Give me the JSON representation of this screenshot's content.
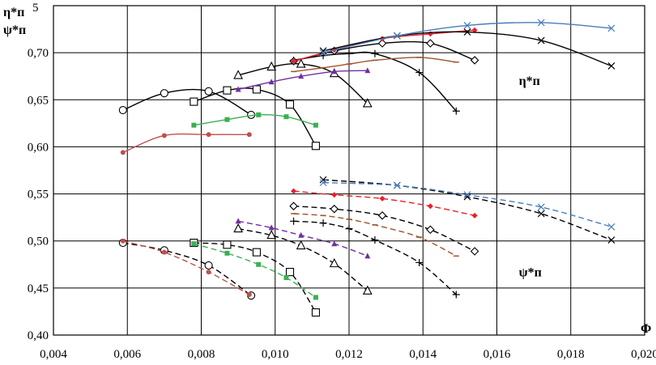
{
  "chart_data": {
    "type": "line",
    "xlabel": "Φ",
    "ylabel_lines": [
      "η*п",
      "ψ*п"
    ],
    "xlim": [
      0.004,
      0.02
    ],
    "ylim": [
      0.4,
      0.75
    ],
    "x_ticks": [
      "0,004",
      "0,006",
      "0,008",
      "0,010",
      "0,012",
      "0,014",
      "0,016",
      "0,018",
      "0,020"
    ],
    "y_ticks": [
      "0,40",
      "0,45",
      "0,50",
      "0,55",
      "0,60",
      "0,65",
      "0,70"
    ],
    "y_top_label": "5",
    "grid": true,
    "annotations": [
      {
        "text": "η*п",
        "x": 0.0169,
        "y": 0.669
      },
      {
        "text": "ψ*п",
        "x": 0.0169,
        "y": 0.466
      }
    ],
    "series": [
      {
        "group": "eta",
        "color": "#000000",
        "marker": "circle",
        "dash": false,
        "points": [
          [
            0.00588,
            0.639
          ],
          [
            0.007,
            0.657
          ],
          [
            0.0082,
            0.659
          ],
          [
            0.00935,
            0.634
          ]
        ]
      },
      {
        "group": "eta",
        "color": "#c0504d",
        "marker": "dot",
        "dash": false,
        "points": [
          [
            0.00588,
            0.594
          ],
          [
            0.007,
            0.612
          ],
          [
            0.0082,
            0.613
          ],
          [
            0.0093,
            0.613
          ]
        ]
      },
      {
        "group": "eta",
        "color": "#000000",
        "marker": "square",
        "dash": false,
        "points": [
          [
            0.0078,
            0.648
          ],
          [
            0.0087,
            0.66
          ],
          [
            0.0095,
            0.661
          ],
          [
            0.0104,
            0.645
          ],
          [
            0.0111,
            0.601
          ]
        ]
      },
      {
        "group": "eta",
        "color": "#3cb054",
        "marker": "filled-square",
        "dash": false,
        "points": [
          [
            0.0078,
            0.623
          ],
          [
            0.0087,
            0.629
          ],
          [
            0.00955,
            0.634
          ],
          [
            0.0103,
            0.632
          ],
          [
            0.0111,
            0.623
          ]
        ]
      },
      {
        "group": "eta",
        "color": "#000000",
        "marker": "triangle",
        "dash": false,
        "points": [
          [
            0.009,
            0.676
          ],
          [
            0.0099,
            0.685
          ],
          [
            0.0107,
            0.688
          ],
          [
            0.0116,
            0.678
          ],
          [
            0.0125,
            0.646
          ]
        ]
      },
      {
        "group": "eta",
        "color": "#7030a0",
        "marker": "filled-triangle",
        "dash": false,
        "points": [
          [
            0.009,
            0.661
          ],
          [
            0.0099,
            0.669
          ],
          [
            0.0107,
            0.675
          ],
          [
            0.0116,
            0.68
          ],
          [
            0.0125,
            0.681
          ]
        ]
      },
      {
        "group": "eta",
        "color": "#000000",
        "marker": "plus",
        "dash": false,
        "points": [
          [
            0.0105,
            0.692
          ],
          [
            0.0113,
            0.697
          ],
          [
            0.012,
            0.699
          ],
          [
            0.0127,
            0.699
          ],
          [
            0.0139,
            0.679
          ],
          [
            0.0149,
            0.638
          ]
        ]
      },
      {
        "group": "eta",
        "color": "#a0522d",
        "marker": "dash",
        "dash": false,
        "points": [
          [
            0.0105,
            0.68
          ],
          [
            0.0113,
            0.684
          ],
          [
            0.012,
            0.688
          ],
          [
            0.0127,
            0.692
          ],
          [
            0.0139,
            0.695
          ],
          [
            0.0149,
            0.69
          ]
        ]
      },
      {
        "group": "eta",
        "color": "#000000",
        "marker": "diamond",
        "dash": false,
        "points": [
          [
            0.0105,
            0.691
          ],
          [
            0.0116,
            0.702
          ],
          [
            0.0129,
            0.71
          ],
          [
            0.0142,
            0.71
          ],
          [
            0.0154,
            0.692
          ]
        ]
      },
      {
        "group": "eta",
        "color": "#e8202a",
        "marker": "filled-diamond",
        "dash": false,
        "points": [
          [
            0.0105,
            0.691
          ],
          [
            0.0116,
            0.703
          ],
          [
            0.0129,
            0.715
          ],
          [
            0.0142,
            0.72
          ],
          [
            0.0154,
            0.724
          ]
        ]
      },
      {
        "group": "eta",
        "color": "#000000",
        "marker": "x",
        "dash": false,
        "points": [
          [
            0.0113,
            0.702
          ],
          [
            0.0133,
            0.718
          ],
          [
            0.0152,
            0.722
          ],
          [
            0.0172,
            0.713
          ],
          [
            0.0191,
            0.686
          ]
        ]
      },
      {
        "group": "eta",
        "color": "#4a7ebb",
        "marker": "x",
        "dash": false,
        "points": [
          [
            0.0113,
            0.7
          ],
          [
            0.0133,
            0.718
          ],
          [
            0.0152,
            0.729
          ],
          [
            0.0172,
            0.732
          ],
          [
            0.0191,
            0.726
          ]
        ]
      },
      {
        "group": "psi",
        "color": "#000000",
        "marker": "circle",
        "dash": true,
        "points": [
          [
            0.00588,
            0.498
          ],
          [
            0.007,
            0.49
          ],
          [
            0.0082,
            0.474
          ],
          [
            0.00935,
            0.442
          ]
        ]
      },
      {
        "group": "psi",
        "color": "#c0504d",
        "marker": "dot",
        "dash": true,
        "points": [
          [
            0.00588,
            0.5
          ],
          [
            0.007,
            0.488
          ],
          [
            0.0082,
            0.467
          ],
          [
            0.0093,
            0.443
          ]
        ]
      },
      {
        "group": "psi",
        "color": "#000000",
        "marker": "square",
        "dash": true,
        "points": [
          [
            0.0078,
            0.498
          ],
          [
            0.0087,
            0.496
          ],
          [
            0.0095,
            0.488
          ],
          [
            0.0104,
            0.467
          ],
          [
            0.0111,
            0.424
          ]
        ]
      },
      {
        "group": "psi",
        "color": "#3cb054",
        "marker": "filled-square",
        "dash": true,
        "points": [
          [
            0.0078,
            0.497
          ],
          [
            0.0087,
            0.487
          ],
          [
            0.00955,
            0.475
          ],
          [
            0.0103,
            0.461
          ],
          [
            0.0111,
            0.44
          ]
        ]
      },
      {
        "group": "psi",
        "color": "#000000",
        "marker": "triangle",
        "dash": true,
        "points": [
          [
            0.009,
            0.513
          ],
          [
            0.0099,
            0.506
          ],
          [
            0.0107,
            0.495
          ],
          [
            0.0116,
            0.476
          ],
          [
            0.0125,
            0.447
          ]
        ]
      },
      {
        "group": "psi",
        "color": "#7030a0",
        "marker": "filled-triangle",
        "dash": true,
        "points": [
          [
            0.009,
            0.521
          ],
          [
            0.0099,
            0.514
          ],
          [
            0.0107,
            0.506
          ],
          [
            0.0116,
            0.497
          ],
          [
            0.0125,
            0.484
          ]
        ]
      },
      {
        "group": "psi",
        "color": "#000000",
        "marker": "plus",
        "dash": true,
        "points": [
          [
            0.0105,
            0.521
          ],
          [
            0.0113,
            0.519
          ],
          [
            0.012,
            0.513
          ],
          [
            0.0127,
            0.501
          ],
          [
            0.0139,
            0.477
          ],
          [
            0.0149,
            0.443
          ]
        ]
      },
      {
        "group": "psi",
        "color": "#a0522d",
        "marker": "dash",
        "dash": true,
        "points": [
          [
            0.0105,
            0.529
          ],
          [
            0.0113,
            0.527
          ],
          [
            0.012,
            0.523
          ],
          [
            0.0127,
            0.517
          ],
          [
            0.0139,
            0.504
          ],
          [
            0.0149,
            0.484
          ]
        ]
      },
      {
        "group": "psi",
        "color": "#000000",
        "marker": "diamond",
        "dash": true,
        "points": [
          [
            0.0105,
            0.537
          ],
          [
            0.0116,
            0.534
          ],
          [
            0.0129,
            0.527
          ],
          [
            0.0142,
            0.512
          ],
          [
            0.0154,
            0.489
          ]
        ]
      },
      {
        "group": "psi",
        "color": "#e8202a",
        "marker": "filled-diamond",
        "dash": true,
        "points": [
          [
            0.0105,
            0.553
          ],
          [
            0.0116,
            0.549
          ],
          [
            0.0129,
            0.545
          ],
          [
            0.0142,
            0.537
          ],
          [
            0.0154,
            0.527
          ]
        ]
      },
      {
        "group": "psi",
        "color": "#000000",
        "marker": "x",
        "dash": true,
        "points": [
          [
            0.0113,
            0.565
          ],
          [
            0.0133,
            0.559
          ],
          [
            0.0152,
            0.547
          ],
          [
            0.0172,
            0.529
          ],
          [
            0.0191,
            0.501
          ]
        ]
      },
      {
        "group": "psi",
        "color": "#4a7ebb",
        "marker": "x",
        "dash": true,
        "points": [
          [
            0.0113,
            0.562
          ],
          [
            0.0133,
            0.559
          ],
          [
            0.0152,
            0.549
          ],
          [
            0.0172,
            0.536
          ],
          [
            0.0191,
            0.515
          ]
        ]
      }
    ]
  }
}
